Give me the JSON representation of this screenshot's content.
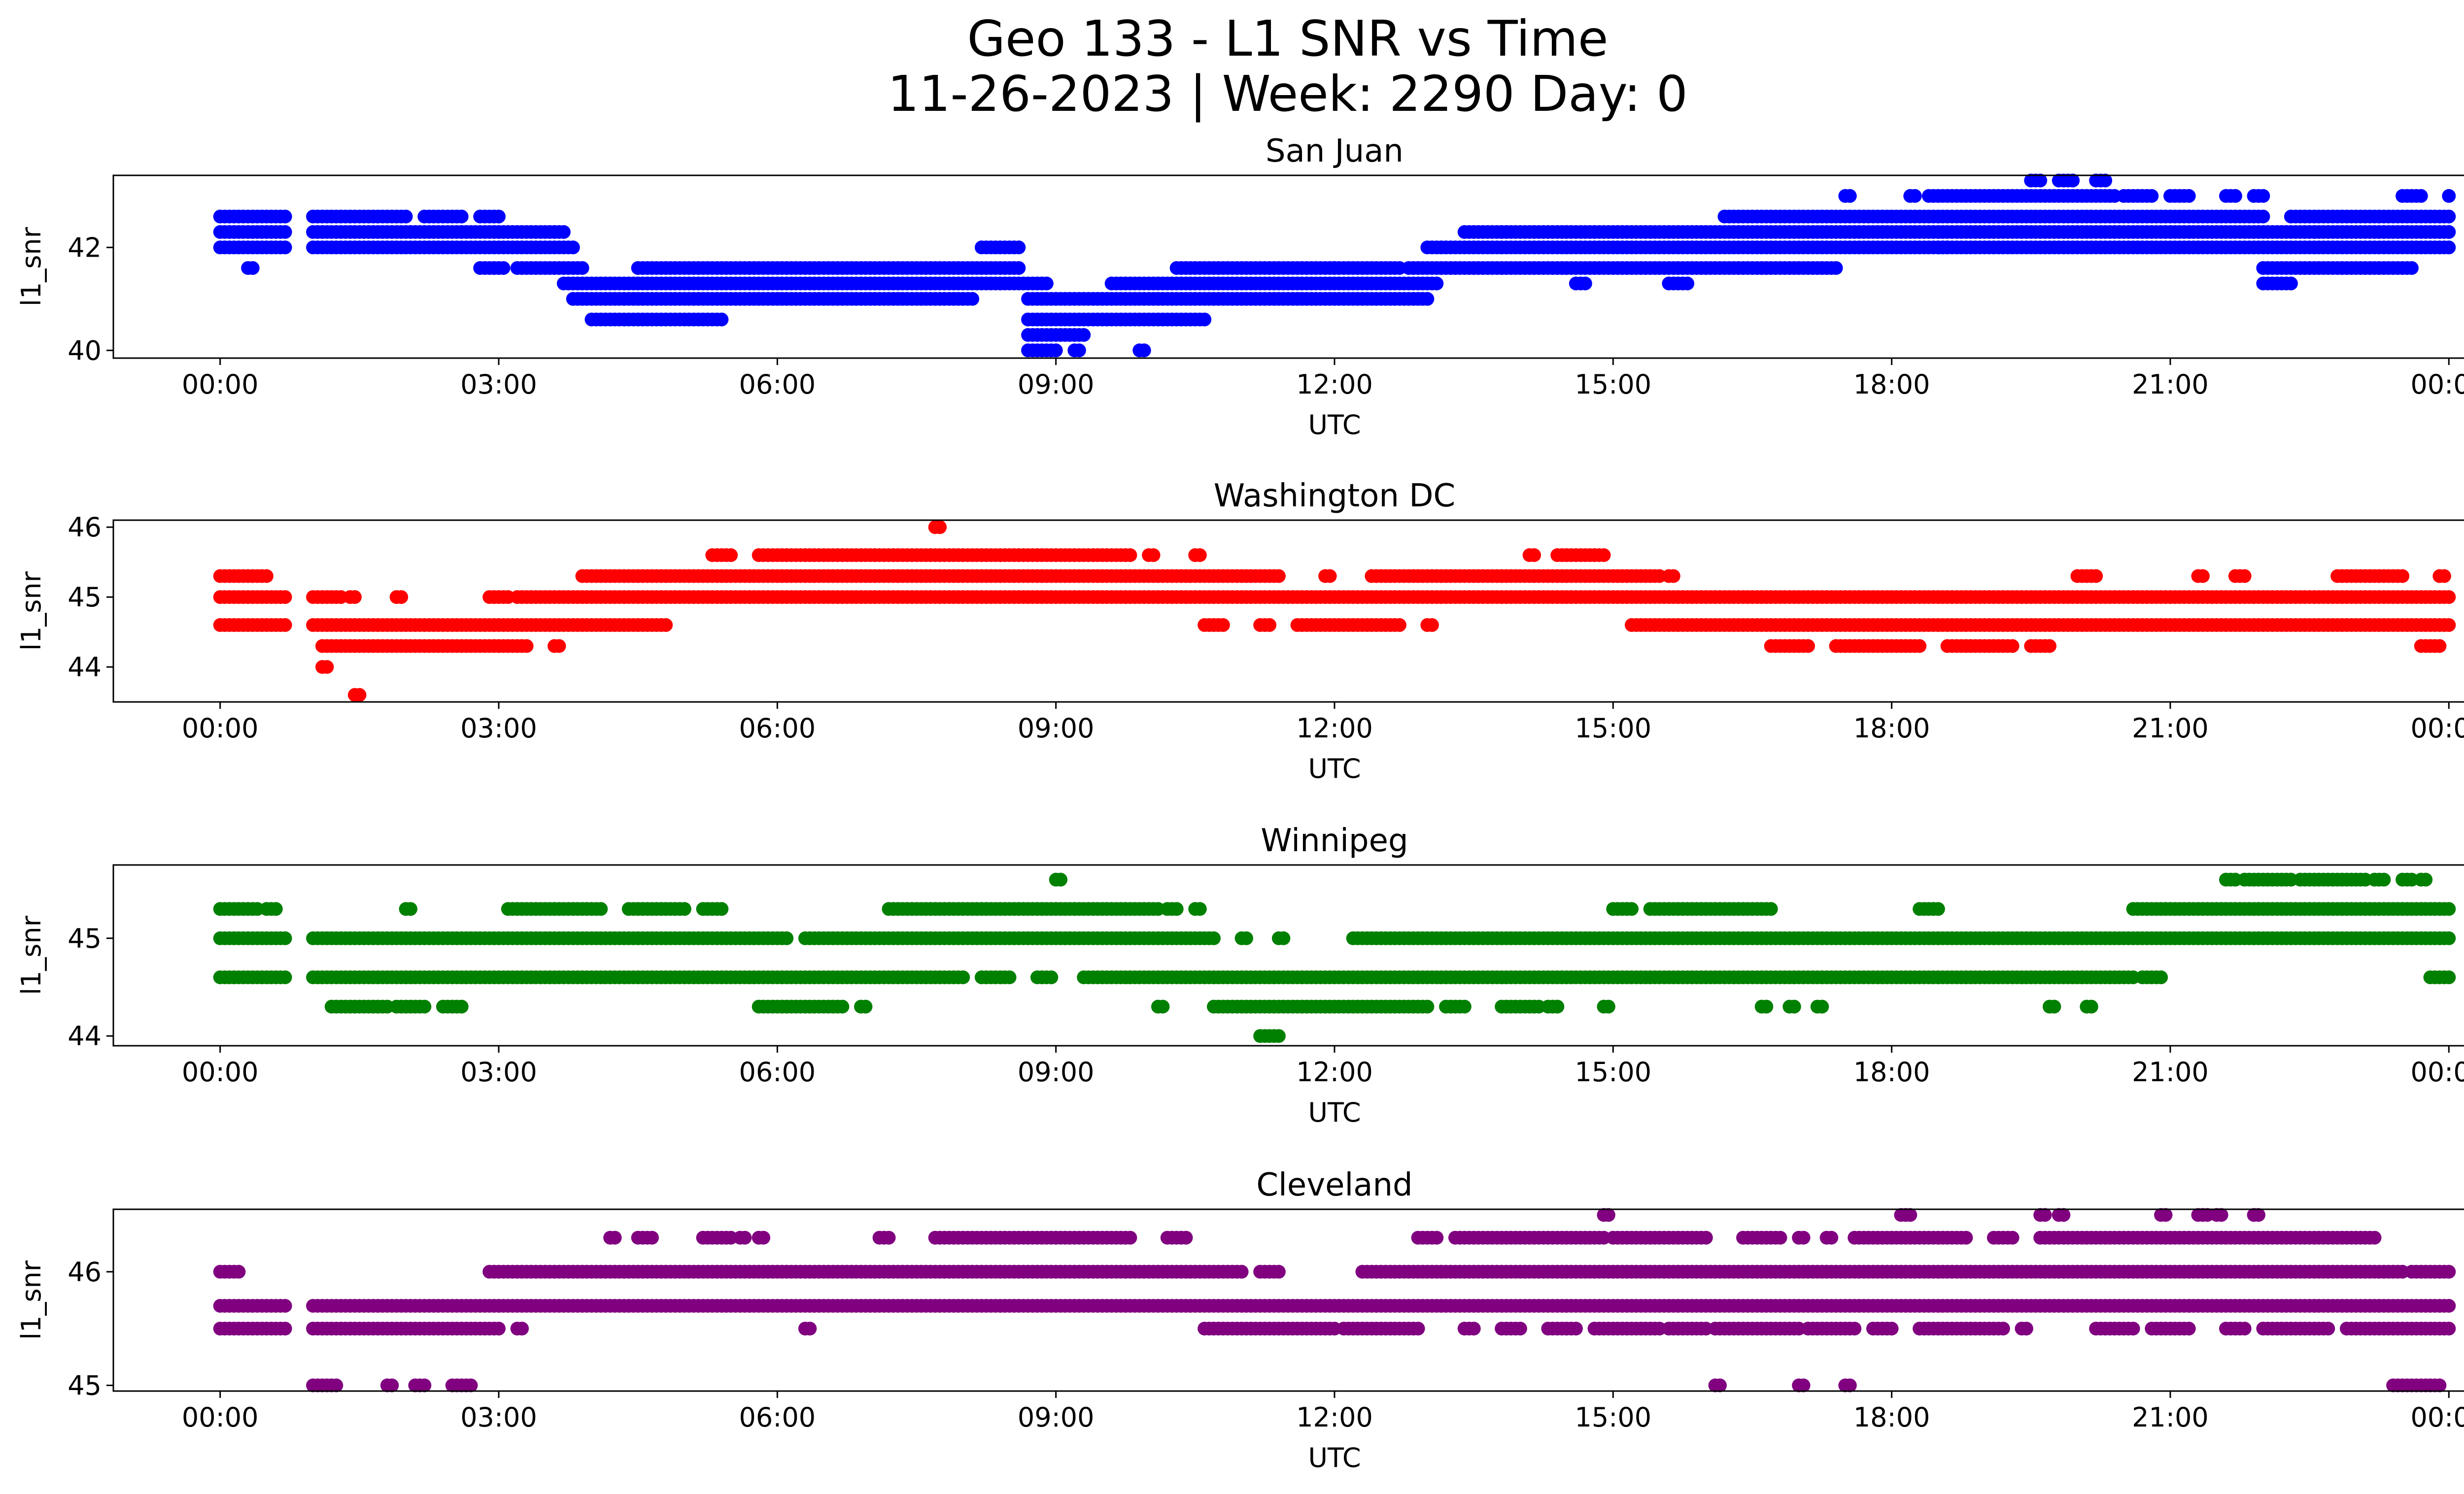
{
  "figure": {
    "title_line1": "Geo 133 - L1 SNR vs Time",
    "title_line2": "11-26-2023 | Week: 2290 Day: 0"
  },
  "chart_data": [
    {
      "type": "scatter",
      "title": "San Juan",
      "xlabel": "UTC",
      "ylabel": "l1_snr",
      "color": "#0000ff",
      "x_ticks": [
        "00:00",
        "03:00",
        "06:00",
        "09:00",
        "12:00",
        "15:00",
        "18:00",
        "21:00",
        "00:00"
      ],
      "x_range_hours": [
        -1.15,
        25.15
      ],
      "y_ticks": [
        40,
        42
      ],
      "ylim": [
        39.85,
        43.4
      ],
      "levels": [
        {
          "y": 42.6,
          "segments": [
            [
              0.0,
              0.7
            ],
            [
              1.0,
              2.0
            ],
            [
              2.2,
              2.6
            ],
            [
              2.8,
              3.0
            ]
          ]
        },
        {
          "y": 42.3,
          "segments": [
            [
              0.0,
              0.7
            ],
            [
              1.0,
              3.7
            ]
          ]
        },
        {
          "y": 42.0,
          "segments": [
            [
              0.0,
              0.7
            ],
            [
              1.0,
              3.8
            ],
            [
              8.2,
              8.6
            ]
          ]
        },
        {
          "y": 41.6,
          "segments": [
            [
              0.3,
              0.35
            ],
            [
              2.8,
              3.05
            ],
            [
              3.2,
              3.9
            ],
            [
              4.5,
              8.6
            ],
            [
              10.3,
              12.0
            ],
            [
              12.0,
              12.7
            ]
          ]
        },
        {
          "y": 41.3,
          "segments": [
            [
              3.7,
              8.9
            ],
            [
              9.6,
              13.1
            ]
          ]
        },
        {
          "y": 41.0,
          "segments": [
            [
              3.8,
              8.1
            ],
            [
              8.7,
              13.0
            ]
          ]
        },
        {
          "y": 40.6,
          "segments": [
            [
              4.0,
              5.4
            ],
            [
              8.7,
              10.6
            ]
          ]
        },
        {
          "y": 40.3,
          "segments": [
            [
              8.7,
              9.3
            ]
          ]
        },
        {
          "y": 40.0,
          "segments": [
            [
              8.7,
              9.0
            ],
            [
              9.2,
              9.25
            ],
            [
              9.9,
              9.95
            ]
          ]
        },
        {
          "y": 42.0,
          "segments": [
            [
              13.0,
              18.6
            ],
            [
              18.5,
              24.0
            ]
          ]
        },
        {
          "y": 42.3,
          "segments": [
            [
              13.4,
              24.0
            ]
          ]
        },
        {
          "y": 41.6,
          "segments": [
            [
              12.8,
              17.4
            ],
            [
              22.0,
              23.6
            ]
          ]
        },
        {
          "y": 41.3,
          "segments": [
            [
              14.6,
              14.7
            ],
            [
              15.6,
              15.8
            ],
            [
              22.0,
              22.3
            ]
          ]
        },
        {
          "y": 42.6,
          "segments": [
            [
              16.2,
              22.0
            ],
            [
              22.3,
              24.0
            ]
          ]
        },
        {
          "y": 43.0,
          "segments": [
            [
              17.5,
              17.55
            ],
            [
              18.2,
              18.25
            ],
            [
              18.4,
              20.4
            ],
            [
              20.5,
              20.8
            ],
            [
              21.0,
              21.2
            ],
            [
              21.6,
              21.7
            ],
            [
              21.9,
              22.0
            ],
            [
              23.5,
              23.7
            ],
            [
              24.0,
              24.05
            ]
          ]
        },
        {
          "y": 43.3,
          "segments": [
            [
              19.5,
              19.6
            ],
            [
              19.8,
              19.95
            ],
            [
              20.2,
              20.3
            ]
          ]
        }
      ]
    },
    {
      "type": "scatter",
      "title": "Washington DC",
      "xlabel": "UTC",
      "ylabel": "l1_snr",
      "color": "#ff0000",
      "x_ticks": [
        "00:00",
        "03:00",
        "06:00",
        "09:00",
        "12:00",
        "15:00",
        "18:00",
        "21:00",
        "00:00"
      ],
      "x_range_hours": [
        -1.15,
        25.15
      ],
      "y_ticks": [
        44,
        45,
        46
      ],
      "ylim": [
        43.5,
        46.1
      ],
      "levels": [
        {
          "y": 45.3,
          "segments": [
            [
              0.0,
              0.5
            ],
            [
              3.9,
              11.4
            ],
            [
              11.9,
              11.95
            ],
            [
              12.4,
              15.5
            ],
            [
              15.6,
              15.65
            ],
            [
              20.0,
              20.2
            ],
            [
              21.3,
              21.35
            ],
            [
              21.7,
              21.8
            ],
            [
              22.8,
              23.5
            ],
            [
              23.9,
              23.95
            ]
          ]
        },
        {
          "y": 45.0,
          "segments": [
            [
              0.0,
              0.7
            ],
            [
              1.0,
              1.3
            ],
            [
              1.4,
              1.45
            ],
            [
              1.9,
              1.95
            ],
            [
              2.9,
              3.1
            ],
            [
              3.2,
              24.0
            ]
          ]
        },
        {
          "y": 44.6,
          "segments": [
            [
              0.0,
              0.7
            ],
            [
              1.0,
              4.8
            ],
            [
              10.6,
              10.8
            ],
            [
              11.2,
              11.3
            ],
            [
              11.6,
              12.7
            ],
            [
              13.0,
              13.05
            ],
            [
              15.2,
              24.0
            ]
          ]
        },
        {
          "y": 44.3,
          "segments": [
            [
              1.1,
              3.3
            ],
            [
              3.6,
              3.65
            ],
            [
              16.7,
              17.1
            ],
            [
              17.4,
              18.3
            ],
            [
              18.6,
              19.3
            ],
            [
              19.5,
              19.7
            ],
            [
              23.7,
              23.9
            ]
          ]
        },
        {
          "y": 45.6,
          "segments": [
            [
              5.3,
              5.5
            ],
            [
              5.8,
              9.8
            ],
            [
              10.0,
              10.05
            ],
            [
              10.5,
              10.55
            ],
            [
              14.1,
              14.15
            ],
            [
              14.4,
              14.9
            ]
          ]
        },
        {
          "y": 44.0,
          "segments": [
            [
              1.1,
              1.15
            ]
          ]
        },
        {
          "y": 43.6,
          "segments": [
            [
              1.45,
              1.5
            ]
          ]
        },
        {
          "y": 46.0,
          "segments": [
            [
              7.7,
              7.75
            ]
          ]
        }
      ]
    },
    {
      "type": "scatter",
      "title": "Winnipeg",
      "xlabel": "UTC",
      "ylabel": "l1_snr",
      "color": "#008000",
      "x_ticks": [
        "00:00",
        "03:00",
        "06:00",
        "09:00",
        "12:00",
        "15:00",
        "18:00",
        "21:00",
        "00:00"
      ],
      "x_range_hours": [
        -1.15,
        25.15
      ],
      "y_ticks": [
        44,
        45
      ],
      "ylim": [
        43.9,
        45.75
      ],
      "levels": [
        {
          "y": 45.3,
          "segments": [
            [
              0.0,
              0.4
            ],
            [
              0.5,
              0.6
            ],
            [
              2.0,
              2.05
            ],
            [
              3.1,
              4.1
            ],
            [
              4.4,
              5.0
            ],
            [
              5.2,
              5.4
            ],
            [
              7.2,
              10.1
            ],
            [
              10.2,
              10.3
            ],
            [
              10.5,
              10.55
            ],
            [
              15.0,
              15.2
            ],
            [
              15.4,
              16.7
            ],
            [
              18.3,
              18.5
            ],
            [
              20.6,
              24.0
            ]
          ]
        },
        {
          "y": 45.0,
          "segments": [
            [
              0.0,
              0.7
            ],
            [
              1.0,
              6.1
            ],
            [
              6.3,
              10.7
            ],
            [
              11.0,
              11.05
            ],
            [
              11.4,
              11.45
            ],
            [
              12.2,
              24.0
            ]
          ]
        },
        {
          "y": 44.6,
          "segments": [
            [
              0.0,
              0.7
            ],
            [
              1.0,
              8.0
            ],
            [
              8.2,
              8.5
            ],
            [
              8.8,
              8.95
            ],
            [
              9.3,
              20.6
            ],
            [
              20.7,
              20.9
            ],
            [
              23.8,
              24.0
            ]
          ]
        },
        {
          "y": 44.3,
          "segments": [
            [
              1.2,
              1.8
            ],
            [
              1.9,
              2.2
            ],
            [
              2.4,
              2.6
            ],
            [
              5.8,
              6.7
            ],
            [
              6.9,
              6.95
            ],
            [
              10.1,
              10.15
            ],
            [
              10.7,
              13.0
            ],
            [
              13.2,
              13.4
            ],
            [
              13.8,
              14.2
            ],
            [
              14.3,
              14.4
            ],
            [
              14.9,
              14.95
            ],
            [
              16.6,
              16.65
            ],
            [
              16.9,
              16.95
            ],
            [
              17.2,
              17.25
            ],
            [
              19.7,
              19.75
            ],
            [
              20.1,
              20.15
            ]
          ]
        },
        {
          "y": 44.0,
          "segments": [
            [
              11.2,
              11.4
            ]
          ]
        },
        {
          "y": 45.6,
          "segments": [
            [
              9.0,
              9.05
            ],
            [
              21.6,
              21.7
            ],
            [
              21.8,
              22.3
            ],
            [
              22.4,
              23.1
            ],
            [
              23.2,
              23.3
            ],
            [
              23.5,
              23.6
            ],
            [
              23.7,
              23.75
            ]
          ]
        }
      ]
    },
    {
      "type": "scatter",
      "title": "Cleveland",
      "xlabel": "UTC",
      "ylabel": "l1_snr",
      "color": "#800080",
      "x_ticks": [
        "00:00",
        "03:00",
        "06:00",
        "09:00",
        "12:00",
        "15:00",
        "18:00",
        "21:00",
        "00:00"
      ],
      "x_range_hours": [
        -1.15,
        25.15
      ],
      "y_ticks": [
        45,
        46
      ],
      "ylim": [
        44.95,
        46.55
      ],
      "levels": [
        {
          "y": 46.0,
          "segments": [
            [
              0.0,
              0.2
            ],
            [
              2.9,
              11.0
            ],
            [
              11.2,
              11.4
            ],
            [
              12.3,
              23.5
            ],
            [
              23.6,
              24.0
            ]
          ]
        },
        {
          "y": 45.7,
          "segments": [
            [
              0.0,
              0.7
            ],
            [
              1.0,
              24.0
            ]
          ]
        },
        {
          "y": 45.5,
          "segments": [
            [
              0.0,
              0.7
            ],
            [
              1.0,
              3.0
            ],
            [
              3.2,
              3.25
            ],
            [
              6.3,
              6.35
            ],
            [
              10.6,
              12.0
            ],
            [
              12.1,
              12.9
            ],
            [
              13.4,
              13.5
            ],
            [
              13.8,
              14.0
            ],
            [
              14.3,
              14.6
            ],
            [
              14.8,
              15.5
            ],
            [
              15.6,
              16.0
            ],
            [
              16.1,
              17.0
            ],
            [
              17.1,
              17.6
            ],
            [
              17.8,
              18.0
            ],
            [
              18.3,
              19.2
            ],
            [
              19.4,
              19.45
            ],
            [
              20.2,
              20.6
            ],
            [
              20.8,
              21.2
            ],
            [
              21.6,
              21.8
            ],
            [
              22.0,
              22.7
            ],
            [
              22.9,
              24.0
            ]
          ]
        },
        {
          "y": 45.0,
          "segments": [
            [
              1.0,
              1.25
            ],
            [
              1.8,
              1.85
            ],
            [
              2.1,
              2.2
            ],
            [
              2.5,
              2.7
            ],
            [
              16.1,
              16.15
            ],
            [
              17.0,
              17.05
            ],
            [
              17.5,
              17.55
            ],
            [
              23.4,
              23.9
            ]
          ]
        },
        {
          "y": 46.3,
          "segments": [
            [
              4.2,
              4.25
            ],
            [
              4.5,
              4.65
            ],
            [
              5.2,
              5.5
            ],
            [
              5.6,
              5.65
            ],
            [
              5.8,
              5.85
            ],
            [
              7.1,
              7.2
            ],
            [
              7.7,
              9.0
            ],
            [
              9.0,
              9.8
            ],
            [
              10.2,
              10.4
            ],
            [
              12.9,
              13.1
            ],
            [
              13.3,
              14.9
            ],
            [
              15.0,
              16.0
            ],
            [
              16.4,
              16.8
            ],
            [
              17.0,
              17.05
            ],
            [
              17.3,
              17.35
            ],
            [
              17.6,
              18.8
            ],
            [
              19.1,
              19.3
            ],
            [
              19.6,
              23.2
            ]
          ]
        },
        {
          "y": 46.5,
          "segments": [
            [
              14.9,
              14.95
            ],
            [
              18.1,
              18.2
            ],
            [
              19.6,
              19.65
            ],
            [
              19.8,
              19.85
            ],
            [
              20.9,
              20.95
            ],
            [
              21.3,
              21.4
            ],
            [
              21.5,
              21.55
            ],
            [
              21.9,
              21.95
            ]
          ]
        }
      ]
    }
  ]
}
